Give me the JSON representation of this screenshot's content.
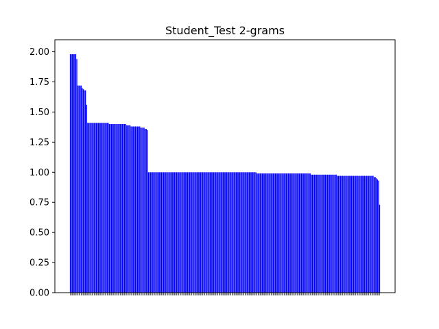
{
  "chart_data": {
    "type": "bar",
    "title": "Student_Test 2-grams",
    "xlabel": "",
    "ylabel": "",
    "ylim": [
      0,
      2.1
    ],
    "yticks": [
      "0.00",
      "0.25",
      "0.50",
      "0.75",
      "1.00",
      "1.25",
      "1.50",
      "1.75",
      "2.00"
    ],
    "bar_color": "#0000ff",
    "grid": false,
    "values": [
      1.98,
      1.98,
      1.98,
      1.98,
      1.98,
      1.98,
      1.94,
      1.72,
      1.72,
      1.72,
      1.72,
      1.7,
      1.69,
      1.68,
      1.68,
      1.56,
      1.41,
      1.41,
      1.41,
      1.41,
      1.41,
      1.41,
      1.41,
      1.41,
      1.41,
      1.41,
      1.41,
      1.41,
      1.41,
      1.41,
      1.41,
      1.41,
      1.41,
      1.41,
      1.41,
      1.41,
      1.4,
      1.4,
      1.4,
      1.4,
      1.4,
      1.4,
      1.4,
      1.4,
      1.4,
      1.4,
      1.4,
      1.4,
      1.4,
      1.4,
      1.4,
      1.4,
      1.39,
      1.39,
      1.39,
      1.39,
      1.38,
      1.38,
      1.38,
      1.38,
      1.38,
      1.38,
      1.38,
      1.38,
      1.38,
      1.37,
      1.37,
      1.37,
      1.37,
      1.36,
      1.36,
      1.35,
      1.0,
      1.0,
      1.0,
      1.0,
      1.0,
      1.0,
      1.0,
      1.0,
      1.0,
      1.0,
      1.0,
      1.0,
      1.0,
      1.0,
      1.0,
      1.0,
      1.0,
      1.0,
      1.0,
      1.0,
      1.0,
      1.0,
      1.0,
      1.0,
      1.0,
      1.0,
      1.0,
      1.0,
      1.0,
      1.0,
      1.0,
      1.0,
      1.0,
      1.0,
      1.0,
      1.0,
      1.0,
      1.0,
      1.0,
      1.0,
      1.0,
      1.0,
      1.0,
      1.0,
      1.0,
      1.0,
      1.0,
      1.0,
      1.0,
      1.0,
      1.0,
      1.0,
      1.0,
      1.0,
      1.0,
      1.0,
      1.0,
      1.0,
      1.0,
      1.0,
      1.0,
      1.0,
      1.0,
      1.0,
      1.0,
      1.0,
      1.0,
      1.0,
      1.0,
      1.0,
      1.0,
      1.0,
      1.0,
      1.0,
      1.0,
      1.0,
      1.0,
      1.0,
      1.0,
      1.0,
      1.0,
      1.0,
      1.0,
      1.0,
      1.0,
      1.0,
      1.0,
      1.0,
      1.0,
      1.0,
      1.0,
      1.0,
      1.0,
      1.0,
      1.0,
      1.0,
      1.0,
      1.0,
      1.0,
      1.0,
      0.99,
      0.99,
      0.99,
      0.99,
      0.99,
      0.99,
      0.99,
      0.99,
      0.99,
      0.99,
      0.99,
      0.99,
      0.99,
      0.99,
      0.99,
      0.99,
      0.99,
      0.99,
      0.99,
      0.99,
      0.99,
      0.99,
      0.99,
      0.99,
      0.99,
      0.99,
      0.99,
      0.99,
      0.99,
      0.99,
      0.99,
      0.99,
      0.99,
      0.99,
      0.99,
      0.99,
      0.99,
      0.99,
      0.99,
      0.99,
      0.99,
      0.99,
      0.99,
      0.99,
      0.99,
      0.99,
      0.99,
      0.99,
      0.99,
      0.99,
      0.98,
      0.98,
      0.98,
      0.98,
      0.98,
      0.98,
      0.98,
      0.98,
      0.98,
      0.98,
      0.98,
      0.98,
      0.98,
      0.98,
      0.98,
      0.98,
      0.98,
      0.98,
      0.98,
      0.98,
      0.98,
      0.98,
      0.98,
      0.98,
      0.97,
      0.97,
      0.97,
      0.97,
      0.97,
      0.97,
      0.97,
      0.97,
      0.97,
      0.97,
      0.97,
      0.97,
      0.97,
      0.97,
      0.97,
      0.97,
      0.97,
      0.97,
      0.97,
      0.97,
      0.97,
      0.97,
      0.97,
      0.97,
      0.97,
      0.97,
      0.97,
      0.97,
      0.97,
      0.97,
      0.97,
      0.97,
      0.97,
      0.97,
      0.96,
      0.96,
      0.95,
      0.94,
      0.93,
      0.73
    ]
  }
}
